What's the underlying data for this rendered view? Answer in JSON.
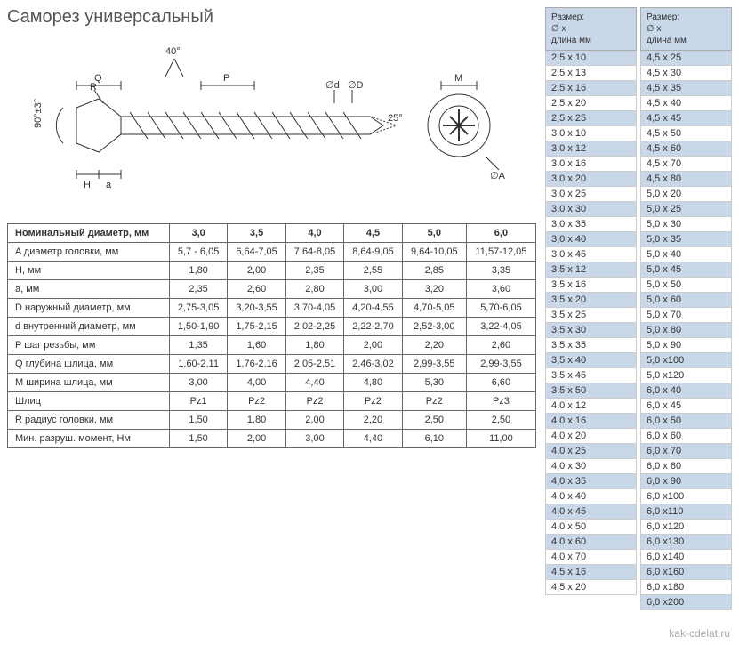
{
  "title": "Саморез универсальный",
  "watermark": "kak-cdelat.ru",
  "diagram": {
    "labels": {
      "Q": "Q",
      "P": "P",
      "M": "M",
      "R": "R",
      "d": "∅d",
      "D": "∅D",
      "A": "∅A",
      "H": "H",
      "a": "a",
      "angle40": "40°",
      "angle25": "25°",
      "angle90": "90°±3°"
    },
    "stroke": "#333333",
    "fill": "#ffffff"
  },
  "specTable": {
    "headerLabel": "Номинальный диаметр, мм",
    "diameters": [
      "3,0",
      "3,5",
      "4,0",
      "4,5",
      "5,0",
      "6,0"
    ],
    "rows": [
      {
        "label": "A диаметр головки, мм",
        "vals": [
          "5,7 - 6,05",
          "6,64-7,05",
          "7,64-8,05",
          "8,64-9,05",
          "9,64-10,05",
          "11,57-12,05"
        ]
      },
      {
        "label": "H, мм",
        "vals": [
          "1,80",
          "2,00",
          "2,35",
          "2,55",
          "2,85",
          "3,35"
        ]
      },
      {
        "label": "a, мм",
        "vals": [
          "2,35",
          "2,60",
          "2,80",
          "3,00",
          "3,20",
          "3,60"
        ]
      },
      {
        "label": "D наружный диаметр, мм",
        "vals": [
          "2,75-3,05",
          "3,20-3,55",
          "3,70-4,05",
          "4,20-4,55",
          "4,70-5,05",
          "5,70-6,05"
        ]
      },
      {
        "label": "d внутренний диаметр, мм",
        "vals": [
          "1,50-1,90",
          "1,75-2,15",
          "2,02-2,25",
          "2,22-2,70",
          "2,52-3,00",
          "3,22-4,05"
        ]
      },
      {
        "label": "P шаг резьбы, мм",
        "vals": [
          "1,35",
          "1,60",
          "1,80",
          "2,00",
          "2,20",
          "2,60"
        ]
      },
      {
        "label": "Q глубина шлица, мм",
        "vals": [
          "1,60-2,11",
          "1,76-2,16",
          "2,05-2,51",
          "2,46-3,02",
          "2,99-3,55",
          "2,99-3,55"
        ]
      },
      {
        "label": "M ширина шлица, мм",
        "vals": [
          "3,00",
          "4,00",
          "4,40",
          "4,80",
          "5,30",
          "6,60"
        ]
      },
      {
        "label": "Шлиц",
        "vals": [
          "Pz1",
          "Pz2",
          "Pz2",
          "Pz2",
          "Pz2",
          "Pz3"
        ]
      },
      {
        "label": "R радиус головки, мм",
        "vals": [
          "1,50",
          "1,80",
          "2,00",
          "2,20",
          "2,50",
          "2,50"
        ]
      },
      {
        "label": "Мин. разруш. момент, Нм",
        "vals": [
          "1,50",
          "2,00",
          "3,00",
          "4,40",
          "6,10",
          "11,00"
        ]
      }
    ]
  },
  "sizeTable": {
    "headerLine1": "Размер:",
    "headerLine2": "∅ x",
    "headerLine3": "длина мм",
    "altColor": "#c8d8e8",
    "col1": [
      "2,5 х 10",
      "2,5 х 13",
      "2,5 х 16",
      "2,5 х 20",
      "2,5 х 25",
      "3,0 х 10",
      "3,0 х 12",
      "3,0 х 16",
      "3,0 х 20",
      "3,0 х 25",
      "3,0 х 30",
      "3,0 х 35",
      "3,0 х 40",
      "3,0 х 45",
      "3,5 х 12",
      "3,5 х 16",
      "3,5 х 20",
      "3,5 х 25",
      "3,5 х 30",
      "3,5 х 35",
      "3,5 х 40",
      "3,5 х 45",
      "3,5 х 50",
      "4,0 х 12",
      "4,0 х 16",
      "4,0 х 20",
      "4,0 х 25",
      "4,0 х 30",
      "4,0 х 35",
      "4,0 х 40",
      "4,0 х 45",
      "4,0 х 50",
      "4,0 х 60",
      "4,0 х 70",
      "4,5 х 16",
      "4,5 х 20"
    ],
    "col2": [
      "4,5 х  25",
      "4,5 х  30",
      "4,5 х  35",
      "4,5 х  40",
      "4,5 х  45",
      "4,5 х  50",
      "4,5 х  60",
      "4,5 х  70",
      "4,5 х  80",
      "5,0 х  20",
      "5,0 х  25",
      "5,0 х  30",
      "5,0 х  35",
      "5,0 х  40",
      "5,0 х  45",
      "5,0 х  50",
      "5,0 х  60",
      "5,0 х  70",
      "5,0 х  80",
      "5,0 х  90",
      "5,0 х100",
      "5,0 х120",
      "6,0 х  40",
      "6,0 х  45",
      "6,0 х  50",
      "6,0 х  60",
      "6,0 х  70",
      "6,0 х  80",
      "6,0 х  90",
      "6,0 х100",
      "6,0 х110",
      "6,0 х120",
      "6,0 х130",
      "6,0 х140",
      "6,0 х160",
      "6,0 х180",
      "6,0 х200"
    ]
  }
}
